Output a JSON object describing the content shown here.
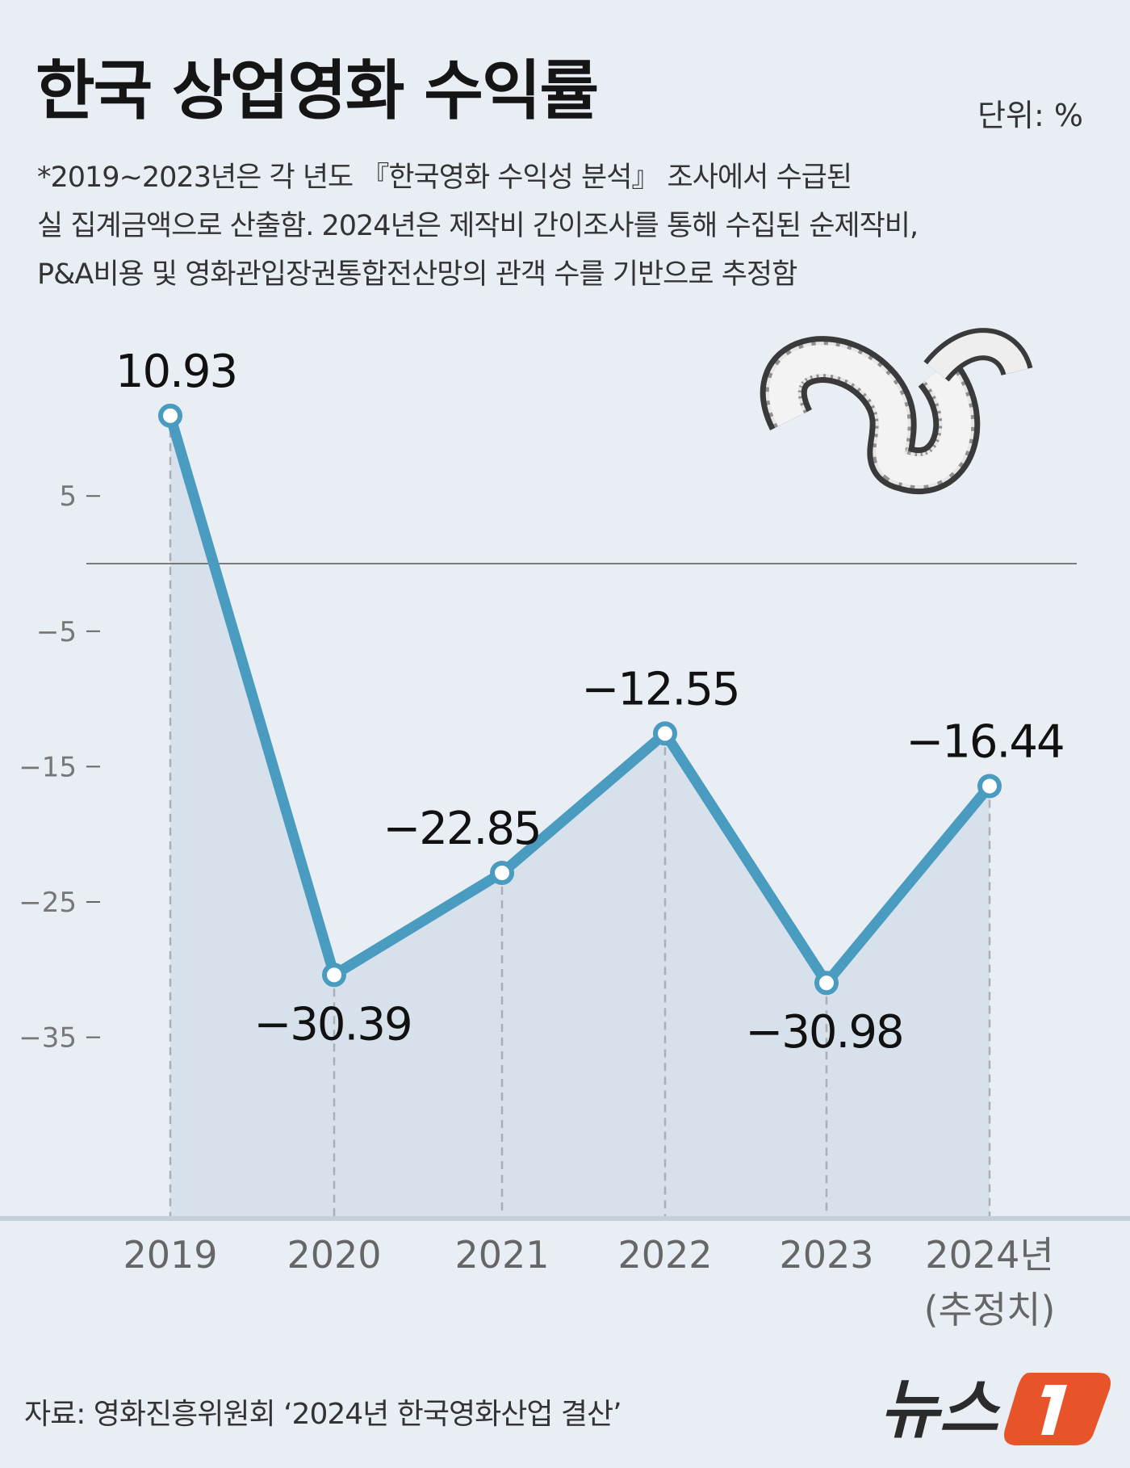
{
  "title": "한국 상업영화 수익률",
  "unit": "단위: %",
  "note_lines": [
    "*2019~2023년은 각 년도 『한국영화 수익성 분석』 조사에서 수급된",
    "실 집계금액으로 산출함. 2024년은 제작비 간이조사를 통해 수집된 순제작비,",
    "P&A비용 및 영화관입장권통합전산망의 관객 수를 기반으로 추정함"
  ],
  "source": "자료: 영화진흥위원회 ‘2024년 한국영화산업 결산’",
  "logo_text": "뉴스1",
  "colors": {
    "line": "#4a9bc0",
    "area": "#d7e1eb",
    "background": "#e9eef5",
    "logo_accent": "#e8542a"
  },
  "chart_data": {
    "type": "area",
    "title": "한국 상업영화 수익률",
    "categories": [
      "2019",
      "2020",
      "2021",
      "2022",
      "2023",
      "2024년"
    ],
    "category_sublabels": [
      "",
      "",
      "",
      "",
      "",
      "(추정치)"
    ],
    "values": [
      10.93,
      -30.39,
      -22.85,
      -12.55,
      -30.98,
      -16.44
    ],
    "value_labels": [
      "10.93",
      "−30.39",
      "−22.85",
      "−12.55",
      "−30.98",
      "−16.44"
    ],
    "yticks": [
      5,
      -5,
      -15,
      -25,
      -35
    ],
    "ytick_labels": [
      "5",
      "−5",
      "−15",
      "−25",
      "−35"
    ],
    "baseline": 0,
    "ylim": [
      -42,
      14
    ],
    "grid": false,
    "legend": "none"
  }
}
